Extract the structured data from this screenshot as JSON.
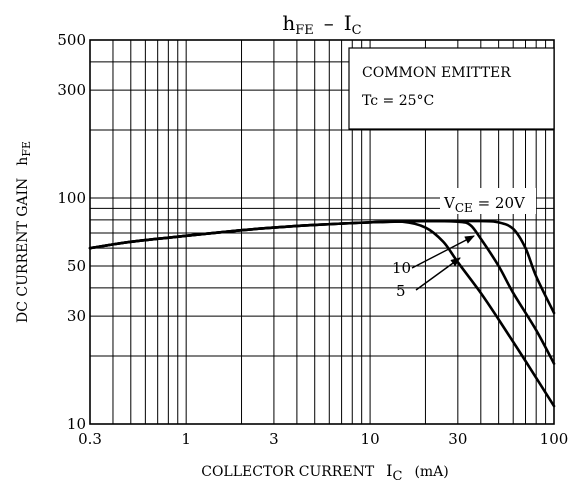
{
  "chart_data": {
    "type": "line",
    "title": "hFE – IC",
    "title_parts": {
      "main_a": "h",
      "sub_a": "FE",
      "dash": "–",
      "main_b": "I",
      "sub_b": "C"
    },
    "xlabel": "COLLECTOR CURRENT IC (mA)",
    "xlabel_parts": {
      "text": "COLLECTOR CURRENT",
      "sym": "I",
      "sub": "C",
      "unit": "(mA)"
    },
    "ylabel": "DC CURRENT GAIN hFE",
    "ylabel_parts": {
      "text": "DC CURRENT GAIN",
      "sym": "h",
      "sub": "FE"
    },
    "x_scale": "log",
    "y_scale": "log",
    "xlim": [
      0.3,
      100
    ],
    "ylim": [
      10,
      500
    ],
    "x_ticks": [
      0.3,
      1,
      3,
      10,
      30,
      100
    ],
    "x_tick_labels": [
      "0.3",
      "1",
      "3",
      "10",
      "30",
      "100"
    ],
    "y_ticks": [
      10,
      30,
      50,
      100,
      300,
      500
    ],
    "y_tick_labels": [
      "10",
      "30",
      "50",
      "100",
      "300",
      "500"
    ],
    "grid": true,
    "annotation_box": {
      "line1": "COMMON EMITTER",
      "line2": "Tc = 25°C"
    },
    "series": [
      {
        "name": "VCE = 20V",
        "label_parts": {
          "sym": "V",
          "sub": "CE",
          "rest": " = 20V"
        },
        "x": [
          0.3,
          0.5,
          1,
          2,
          3,
          5,
          10,
          20,
          40,
          50,
          60,
          70,
          80,
          100
        ],
        "y": [
          60,
          64,
          68,
          72,
          74,
          76,
          78,
          79,
          79,
          78,
          73,
          60,
          45,
          31
        ]
      },
      {
        "name": "10",
        "x": [
          0.3,
          0.5,
          1,
          2,
          3,
          5,
          10,
          20,
          30,
          35,
          40,
          50,
          60,
          80,
          100
        ],
        "y": [
          60,
          64,
          68,
          72,
          74,
          76,
          78,
          79,
          78.5,
          76,
          66,
          50,
          38,
          26,
          18.5
        ]
      },
      {
        "name": "5",
        "x": [
          0.3,
          0.5,
          1,
          2,
          3,
          5,
          10,
          15,
          20,
          25,
          30,
          40,
          50,
          70,
          100
        ],
        "y": [
          60,
          64,
          68,
          72,
          74,
          76,
          78,
          78.5,
          74,
          64,
          52,
          38,
          29,
          19,
          12
        ]
      }
    ]
  }
}
